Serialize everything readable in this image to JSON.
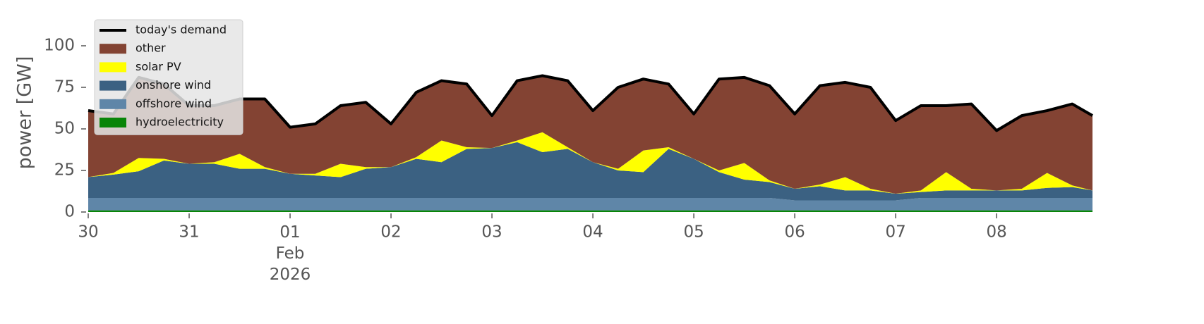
{
  "chart_data": {
    "type": "stacked_area",
    "y_label": "power [GW]",
    "x": [
      0,
      0.25,
      0.5,
      0.75,
      1,
      1.25,
      1.5,
      1.75,
      2,
      2.25,
      2.5,
      2.75,
      3,
      3.25,
      3.5,
      3.75,
      4,
      4.25,
      4.5,
      4.75,
      5,
      5.25,
      5.5,
      5.75,
      6,
      6.25,
      6.5,
      6.75,
      7,
      7.25,
      7.5,
      7.75,
      8,
      8.25,
      8.5,
      8.75,
      9,
      9.25,
      9.5,
      9.75,
      9.95
    ],
    "xlim": [
      0,
      9.95
    ],
    "xticks": [
      {
        "value": 0,
        "label": "30"
      },
      {
        "value": 1,
        "label": "31"
      },
      {
        "value": 2,
        "label": "01\nFeb\n2026"
      },
      {
        "value": 3,
        "label": "02"
      },
      {
        "value": 4,
        "label": "03"
      },
      {
        "value": 5,
        "label": "04"
      },
      {
        "value": 6,
        "label": "05"
      },
      {
        "value": 7,
        "label": "06"
      },
      {
        "value": 8,
        "label": "07"
      },
      {
        "value": 9,
        "label": "08"
      }
    ],
    "ylim": [
      0,
      118
    ],
    "yticks": [
      0,
      25,
      50,
      75,
      100
    ],
    "legend": "upper left",
    "series": [
      {
        "name": "hydroelectricity",
        "color": "#088508",
        "values": [
          1,
          1,
          1,
          1,
          1,
          1,
          1,
          1,
          1,
          1,
          1,
          1,
          1,
          1,
          1,
          1,
          1,
          1,
          1,
          1,
          1,
          1,
          1,
          1,
          1,
          1,
          1,
          1,
          1,
          1,
          1,
          1,
          1,
          1,
          1,
          1,
          1,
          1,
          1,
          1,
          1
        ]
      },
      {
        "name": "offshore wind",
        "color": "#5f86a8",
        "values": [
          7.5,
          7.5,
          7.5,
          7.5,
          7.5,
          7.5,
          7.5,
          7.5,
          7.5,
          7.5,
          7.5,
          7.5,
          7.5,
          7.5,
          7.5,
          7.5,
          7.5,
          7.5,
          7.5,
          7.5,
          7.5,
          7.5,
          7.5,
          7.5,
          7.5,
          7.5,
          7.5,
          7.5,
          6,
          6,
          6,
          6,
          6,
          7.5,
          7.5,
          7.5,
          7.5,
          7.5,
          7.5,
          7.5,
          7.5
        ]
      },
      {
        "name": "onshore wind",
        "color": "#3b6182",
        "values": [
          12.5,
          14,
          16,
          22.5,
          20.5,
          20.5,
          17.5,
          17.5,
          14.5,
          13.5,
          12.5,
          17.5,
          18.5,
          23.5,
          21.5,
          29.5,
          30,
          33.5,
          27.5,
          29.5,
          21.5,
          16.5,
          15.5,
          29.5,
          23.5,
          15.5,
          11,
          9.5,
          7,
          8.5,
          6,
          6,
          4,
          3.5,
          4.5,
          4.5,
          4.5,
          4.5,
          6,
          6.5,
          4.5
        ]
      },
      {
        "name": "solar PV",
        "color": "#ffff00",
        "values": [
          0,
          1,
          8,
          1,
          0,
          1,
          9,
          1,
          0,
          1,
          8,
          1,
          0,
          1,
          13,
          1,
          0,
          1,
          12,
          1,
          0,
          1,
          13,
          1,
          0,
          1,
          10,
          1,
          0,
          1,
          8,
          1,
          0,
          1,
          11,
          1,
          0,
          1,
          9,
          1,
          0
        ]
      },
      {
        "name": "other",
        "color": "#834333",
        "values": [
          40,
          35.5,
          48.5,
          45,
          35,
          34,
          33,
          41,
          28,
          30,
          35,
          39,
          26,
          39,
          36,
          38,
          19.5,
          36,
          34,
          40,
          31,
          49,
          43,
          38,
          27,
          55,
          51.5,
          57,
          45,
          59.5,
          57,
          61,
          44,
          51,
          40,
          51,
          36,
          44,
          37.5,
          49,
          45
        ]
      }
    ],
    "demand": {
      "name": "today's demand",
      "color": "#000000",
      "values": [
        61,
        59,
        81,
        77,
        64,
        64,
        68,
        68,
        51,
        53,
        64,
        66,
        53,
        72,
        79,
        77,
        58,
        79,
        82,
        79,
        61,
        75,
        80,
        77,
        59,
        80,
        81,
        76,
        59,
        76,
        78,
        75,
        55,
        64,
        64,
        65,
        49,
        58,
        61,
        65,
        58
      ]
    }
  }
}
